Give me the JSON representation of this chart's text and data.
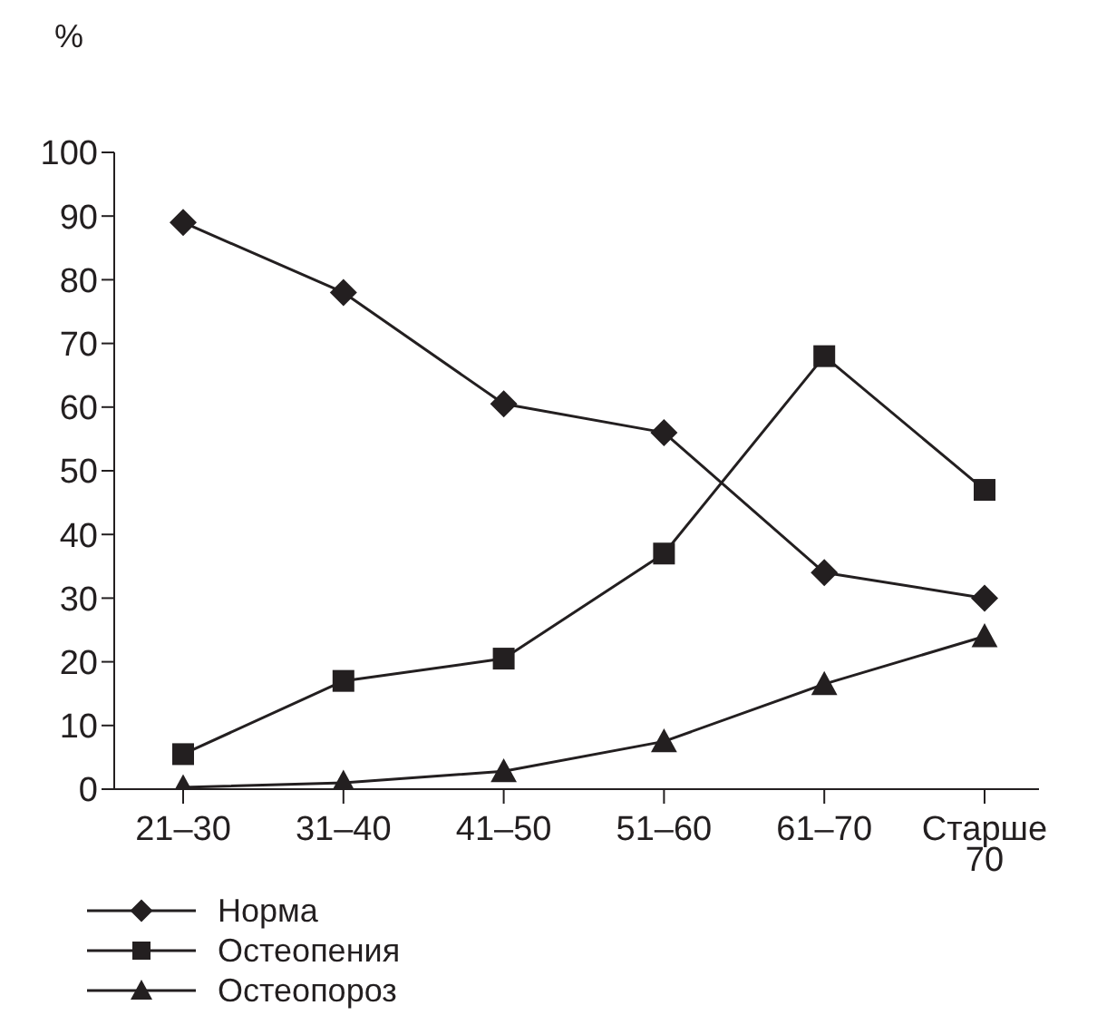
{
  "chart_data": {
    "type": "line",
    "ylabel": "%",
    "categories": [
      "21–30",
      "31–40",
      "41–50",
      "51–60",
      "61–70",
      "Старше 70"
    ],
    "series": [
      {
        "name": "Норма",
        "color": "#231f20",
        "marker": "diamond",
        "values": [
          89,
          78,
          60.5,
          56,
          34,
          30
        ]
      },
      {
        "name": "Остеопения",
        "color": "#231f20",
        "marker": "square",
        "values": [
          5.5,
          17,
          20.5,
          37,
          68,
          47
        ]
      },
      {
        "name": "Остеопороз",
        "color": "#231f20",
        "marker": "triangle",
        "values": [
          0.3,
          1,
          2.8,
          7.5,
          16.5,
          24
        ]
      }
    ],
    "ylim": [
      0,
      100
    ],
    "yticks": [
      0,
      10,
      20,
      30,
      40,
      50,
      60,
      70,
      80,
      90,
      100
    ],
    "grid": false,
    "legend": "bottom left",
    "line_style": "solid"
  }
}
